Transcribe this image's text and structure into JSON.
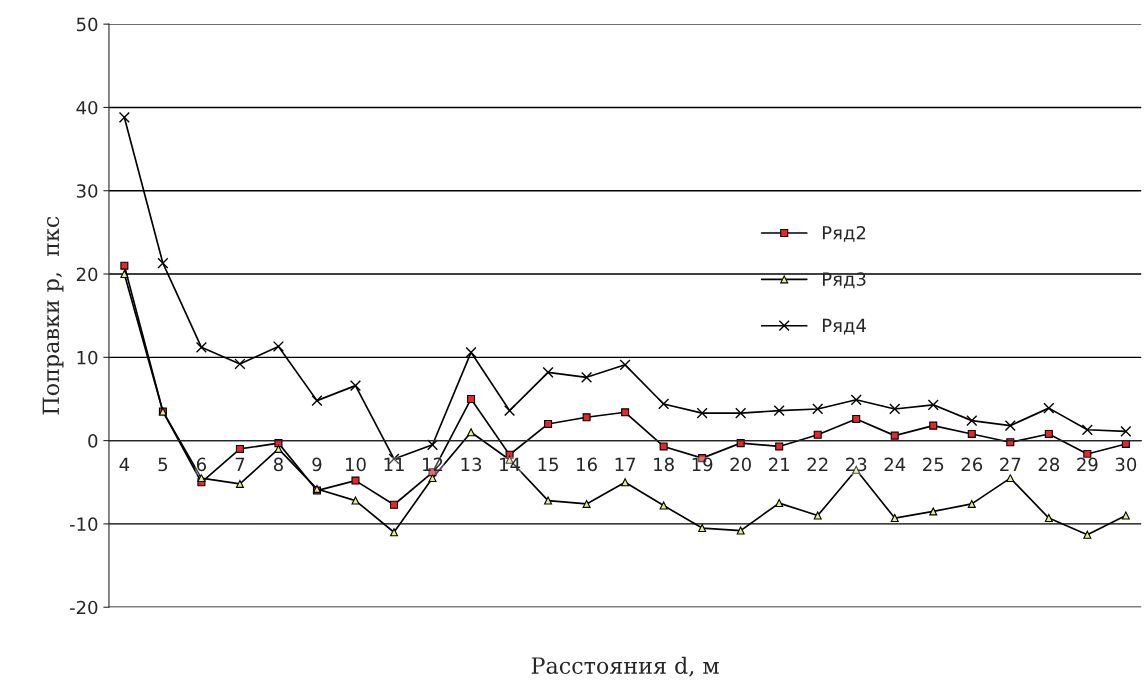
{
  "chart_data": {
    "type": "line",
    "xlabel": "Расстояния d, м",
    "ylabel": "Поправки p,  пкс",
    "categories": [
      "4",
      "5",
      "6",
      "7",
      "8",
      "9",
      "10",
      "11",
      "12",
      "13",
      "14",
      "15",
      "16",
      "17",
      "18",
      "19",
      "20",
      "21",
      "22",
      "23",
      "24",
      "25",
      "26",
      "27",
      "28",
      "29",
      "30"
    ],
    "series": [
      {
        "name": "Ряд2",
        "color": "#e8262a",
        "marker": "square",
        "values": [
          21,
          3.5,
          -5,
          -1,
          -0.3,
          -6,
          -4.8,
          -7.7,
          -3.8,
          5,
          -1.7,
          2,
          2.8,
          3.4,
          -0.7,
          -2.1,
          -0.3,
          -0.7,
          0.7,
          2.6,
          0.6,
          1.8,
          0.8,
          -0.2,
          0.8,
          -1.6,
          -0.4
        ]
      },
      {
        "name": "Ряд3",
        "color": "#e6f07a",
        "marker": "triangle",
        "values": [
          20,
          3.5,
          -4.5,
          -5.2,
          -1,
          -5.8,
          -7.2,
          -11,
          -4.5,
          1,
          -2.3,
          -7.2,
          -7.6,
          -5,
          -7.8,
          -10.5,
          -10.8,
          -7.5,
          -9,
          -3.5,
          -9.3,
          -8.5,
          -7.6,
          -4.5,
          -9.3,
          -11.3,
          -9
        ]
      },
      {
        "name": "Ряд4",
        "color": "#000000",
        "marker": "cross",
        "values": [
          38.8,
          21.3,
          11.2,
          9.2,
          11.3,
          4.8,
          6.6,
          -2.2,
          -0.5,
          10.6,
          3.6,
          8.2,
          7.6,
          9.1,
          4.4,
          3.3,
          3.3,
          3.6,
          3.8,
          4.9,
          3.8,
          4.3,
          2.4,
          1.8,
          3.9,
          1.3,
          1.1
        ]
      }
    ],
    "ylim": [
      -20,
      50
    ],
    "yticks": [
      -20,
      -10,
      0,
      10,
      20,
      30,
      40,
      50
    ],
    "grid": "y",
    "legend": "right"
  }
}
